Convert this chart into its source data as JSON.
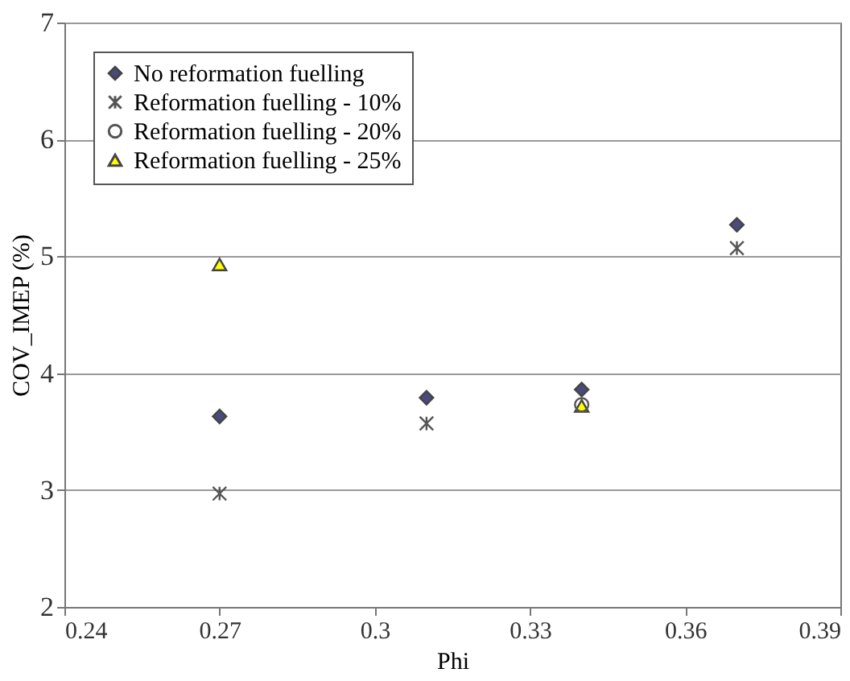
{
  "chart_data": {
    "type": "scatter",
    "xlabel": "Phi",
    "ylabel": "COV_IMEP (%)",
    "xlim": [
      0.24,
      0.39
    ],
    "xticks": [
      0.24,
      0.27,
      0.3,
      0.33,
      0.36,
      0.39
    ],
    "ylim": [
      2,
      7
    ],
    "yticks": [
      2,
      3,
      4,
      5,
      6,
      7
    ],
    "grid": "y",
    "legend": "top left",
    "series": [
      {
        "name": "No reformation fuelling",
        "color": "#4b4a7e",
        "marker": "diamond",
        "x": [
          0.27,
          0.31,
          0.34,
          0.37
        ],
        "values": [
          3.63,
          3.79,
          3.86,
          5.27
        ]
      },
      {
        "name": "Reformation fuelling - 10%",
        "color": "#555555",
        "marker": "cross",
        "x": [
          0.27,
          0.31,
          0.37
        ],
        "values": [
          2.97,
          3.57,
          5.07
        ]
      },
      {
        "name": "Reformation fuelling - 20%",
        "color": "#555555",
        "marker": "circle",
        "x": [
          0.34
        ],
        "values": [
          3.73
        ]
      },
      {
        "name": "Reformation fuelling - 25%",
        "color": "#ffff00",
        "marker": "triangle",
        "x": [
          0.27,
          0.34
        ],
        "values": [
          4.93,
          3.72
        ]
      }
    ]
  }
}
